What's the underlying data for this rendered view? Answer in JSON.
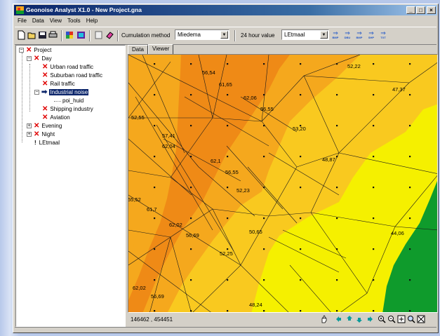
{
  "window": {
    "title": "Geonoise Analyst X1.0 - New Project.gna",
    "controls": [
      "_",
      "□",
      "×"
    ]
  },
  "menu": [
    "File",
    "Data",
    "View",
    "Tools",
    "Help"
  ],
  "toolbar": {
    "icons": [
      "new-icon",
      "open-icon",
      "save-icon",
      "print-icon",
      "palette-icon",
      "grid-color-icon",
      "document-icon",
      "eraser-icon"
    ],
    "cumulation_label": "Cumulation method",
    "cumulation_value": "Miedema",
    "hour_label": "24 hour value",
    "hour_value": "LEtmaal",
    "exports": [
      "BMP",
      "DBU",
      "BMP",
      "SHP",
      "TXT"
    ]
  },
  "tree": {
    "root": "Project",
    "day": "Day",
    "urban": "Urban road traffic",
    "suburban": "Suburban road traffic",
    "rail": "Rail traffic",
    "industrial": "Industrial noise",
    "poi": "poi_huid",
    "shipping": "Shipping industry",
    "aviation": "Aviation",
    "evening": "Evening",
    "night": "Night",
    "letmaal": "LEtmaal"
  },
  "tabs": [
    "Data",
    "Viewer"
  ],
  "map": {
    "values": [
      "56,54",
      "61,65",
      "52,22",
      "62,06",
      "56,55",
      "52,55",
      "47,37",
      "57,41",
      "62,04",
      "53,20",
      "62,1",
      "56,55",
      "48,87",
      "52,23",
      "55,52",
      "61,7",
      "62,02",
      "56,69",
      "50,65",
      "44,06",
      "52,25",
      "62,02",
      "56,69",
      "48,24",
      "52,27"
    ],
    "colors": {
      "dark_orange": "#ef8a16",
      "orange": "#f5a81d",
      "gold": "#f9c91f",
      "yellow": "#f5f000",
      "green": "#0f9b2c"
    }
  },
  "coords": "146462 , 454451",
  "map_tools": [
    "hand-icon",
    "pan-left-icon",
    "pan-up-icon",
    "pan-down-icon",
    "pan-right-icon",
    "zoom-in-icon",
    "zoom-out-icon",
    "zoom-extent-icon",
    "zoom-window-icon",
    "zoom-all-icon"
  ]
}
